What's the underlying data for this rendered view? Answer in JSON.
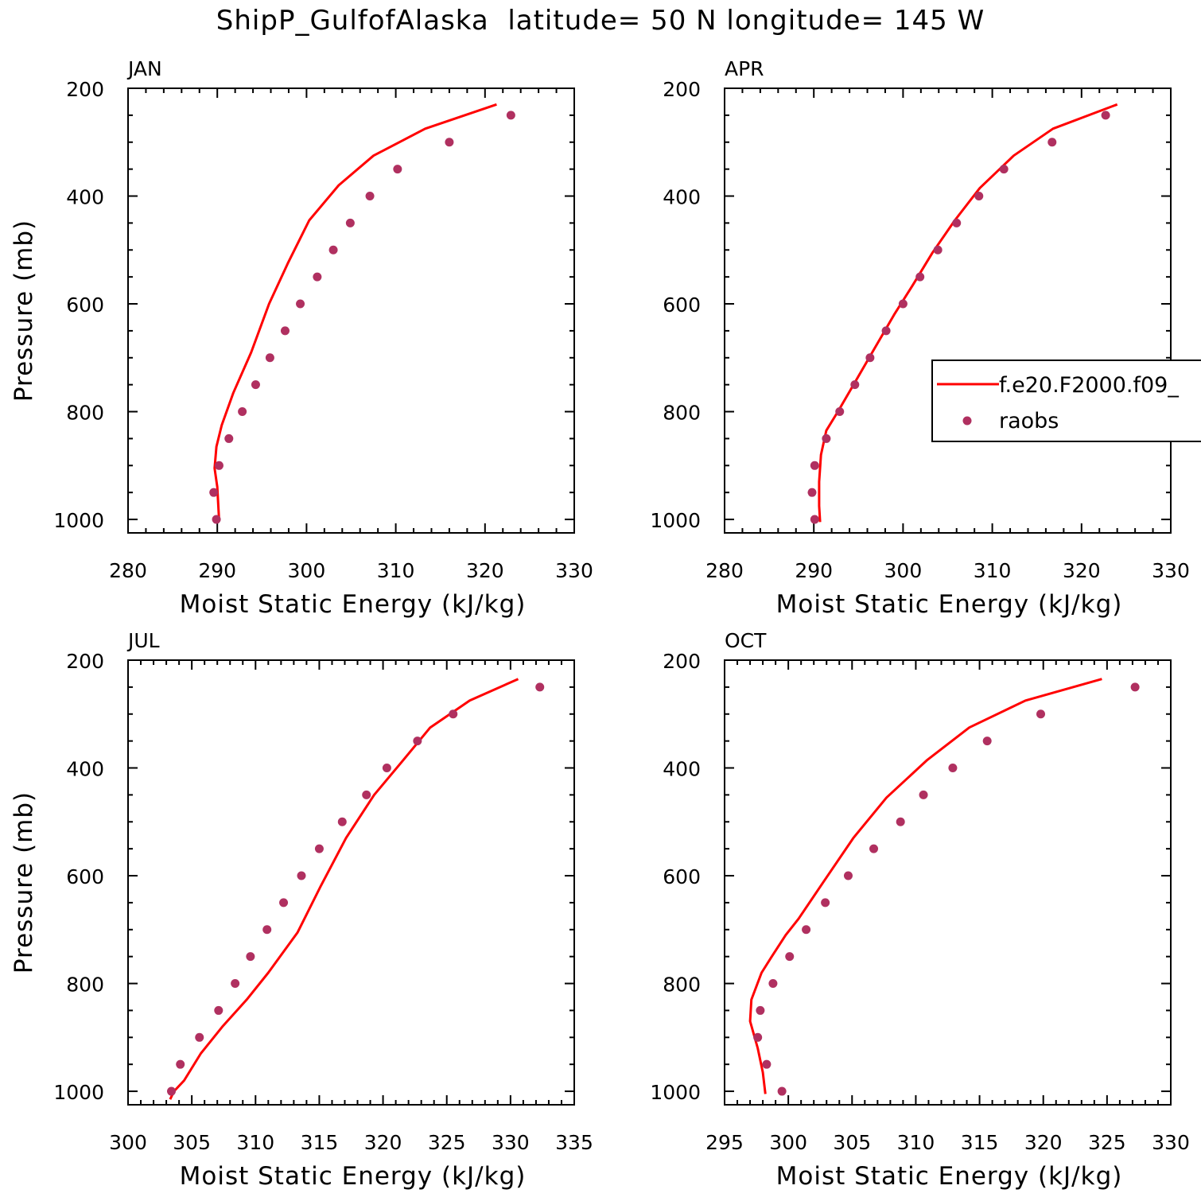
{
  "title": "ShipP_GulfofAlaska  latitude= 50 N longitude= 145 W",
  "legend": {
    "series_line_label": "f.e20.F2000.f09_",
    "series_points_label": "raobs",
    "colors": {
      "model": "#ff0000",
      "raobs": "#b03060"
    }
  },
  "chart_data": [
    {
      "type": "line",
      "panel_label": "JAN",
      "xlabel": "Moist Static Energy (kJ/kg)",
      "ylabel": "Pressure (mb)",
      "xlim": [
        280,
        330
      ],
      "ylim": [
        200,
        1025
      ],
      "y_inverted": true,
      "xticks": [
        280,
        290,
        300,
        310,
        320,
        330
      ],
      "yticks": [
        200,
        400,
        600,
        800,
        1000
      ],
      "series": [
        {
          "name": "f.e20.F2000.f09_",
          "kind": "line",
          "x": [
            321.3,
            313.3,
            307.5,
            303.6,
            300.3,
            297.9,
            295.8,
            293.8,
            291.8,
            290.5,
            289.9,
            289.7,
            290.0,
            290.1,
            290.2
          ],
          "y": [
            230,
            275,
            325,
            380,
            445,
            525,
            600,
            690,
            765,
            825,
            865,
            905,
            940,
            970,
            1000
          ]
        },
        {
          "name": "raobs",
          "kind": "points",
          "x": [
            322.9,
            316.0,
            310.2,
            307.1,
            304.9,
            303.0,
            301.2,
            299.3,
            297.6,
            295.9,
            294.3,
            292.8,
            291.3,
            290.2,
            289.6,
            289.9
          ],
          "y": [
            250,
            300,
            350,
            400,
            450,
            500,
            550,
            600,
            650,
            700,
            750,
            800,
            850,
            900,
            950,
            1000
          ]
        }
      ]
    },
    {
      "type": "line",
      "panel_label": "APR",
      "xlabel": "Moist Static Energy (kJ/kg)",
      "ylabel": "",
      "xlim": [
        280,
        330
      ],
      "ylim": [
        200,
        1025
      ],
      "y_inverted": true,
      "xticks": [
        280,
        290,
        300,
        310,
        320,
        330
      ],
      "yticks": [
        200,
        400,
        600,
        800,
        1000
      ],
      "series": [
        {
          "name": "f.e20.F2000.f09_",
          "kind": "line",
          "x": [
            324.0,
            316.8,
            312.4,
            308.6,
            305.8,
            303.3,
            301.1,
            299.0,
            296.9,
            294.8,
            292.7,
            291.4,
            290.8,
            290.6,
            290.6,
            290.7
          ],
          "y": [
            230,
            275,
            325,
            385,
            445,
            505,
            565,
            620,
            680,
            740,
            800,
            835,
            880,
            930,
            975,
            1005
          ]
        },
        {
          "name": "raobs",
          "kind": "points",
          "x": [
            322.7,
            316.7,
            311.3,
            308.5,
            306.0,
            303.9,
            301.9,
            300.0,
            298.1,
            296.3,
            294.6,
            292.9,
            291.4,
            290.1,
            289.8,
            290.1
          ],
          "y": [
            250,
            300,
            350,
            400,
            450,
            500,
            550,
            600,
            650,
            700,
            750,
            800,
            850,
            900,
            950,
            1000
          ]
        }
      ]
    },
    {
      "type": "line",
      "panel_label": "JUL",
      "xlabel": "Moist Static Energy (kJ/kg)",
      "ylabel": "Pressure (mb)",
      "xlim": [
        300,
        335
      ],
      "ylim": [
        200,
        1025
      ],
      "y_inverted": true,
      "xticks": [
        300,
        305,
        310,
        315,
        320,
        325,
        330,
        335
      ],
      "yticks": [
        200,
        400,
        600,
        800,
        1000
      ],
      "series": [
        {
          "name": "f.e20.F2000.f09_",
          "kind": "line",
          "x": [
            330.6,
            326.8,
            323.7,
            321.6,
            319.3,
            317.1,
            315.1,
            313.3,
            311.0,
            309.3,
            307.4,
            305.7,
            304.4,
            303.6,
            303.3
          ],
          "y": [
            235,
            275,
            325,
            385,
            450,
            530,
            620,
            705,
            780,
            830,
            880,
            930,
            980,
            1000,
            1015
          ]
        },
        {
          "name": "raobs",
          "kind": "points",
          "x": [
            332.3,
            325.5,
            322.7,
            320.3,
            318.7,
            316.8,
            315.0,
            313.6,
            312.2,
            310.9,
            309.6,
            308.4,
            307.1,
            305.6,
            304.1,
            303.4
          ],
          "y": [
            250,
            300,
            350,
            400,
            450,
            500,
            550,
            600,
            650,
            700,
            750,
            800,
            850,
            900,
            950,
            1000
          ]
        }
      ]
    },
    {
      "type": "line",
      "panel_label": "OCT",
      "xlabel": "Moist Static Energy (kJ/kg)",
      "ylabel": "",
      "xlim": [
        295,
        330
      ],
      "ylim": [
        200,
        1025
      ],
      "y_inverted": true,
      "xticks": [
        295,
        300,
        305,
        310,
        315,
        320,
        325,
        330
      ],
      "yticks": [
        200,
        400,
        600,
        800,
        1000
      ],
      "series": [
        {
          "name": "f.e20.F2000.f09_",
          "kind": "line",
          "x": [
            324.6,
            318.6,
            314.2,
            310.9,
            307.7,
            305.1,
            302.8,
            300.8,
            299.8,
            298.7,
            297.9,
            297.1,
            297.0,
            297.6,
            298.0,
            298.2
          ],
          "y": [
            235,
            275,
            325,
            385,
            455,
            530,
            610,
            680,
            710,
            750,
            780,
            830,
            870,
            920,
            965,
            1005
          ]
        },
        {
          "name": "raobs",
          "kind": "points",
          "x": [
            327.2,
            319.8,
            315.6,
            312.9,
            310.6,
            308.8,
            306.7,
            304.7,
            302.9,
            301.4,
            300.1,
            298.8,
            297.8,
            297.6,
            298.3,
            299.5
          ],
          "y": [
            250,
            300,
            350,
            400,
            450,
            500,
            550,
            600,
            650,
            700,
            750,
            800,
            850,
            900,
            950,
            1000
          ]
        }
      ]
    }
  ]
}
